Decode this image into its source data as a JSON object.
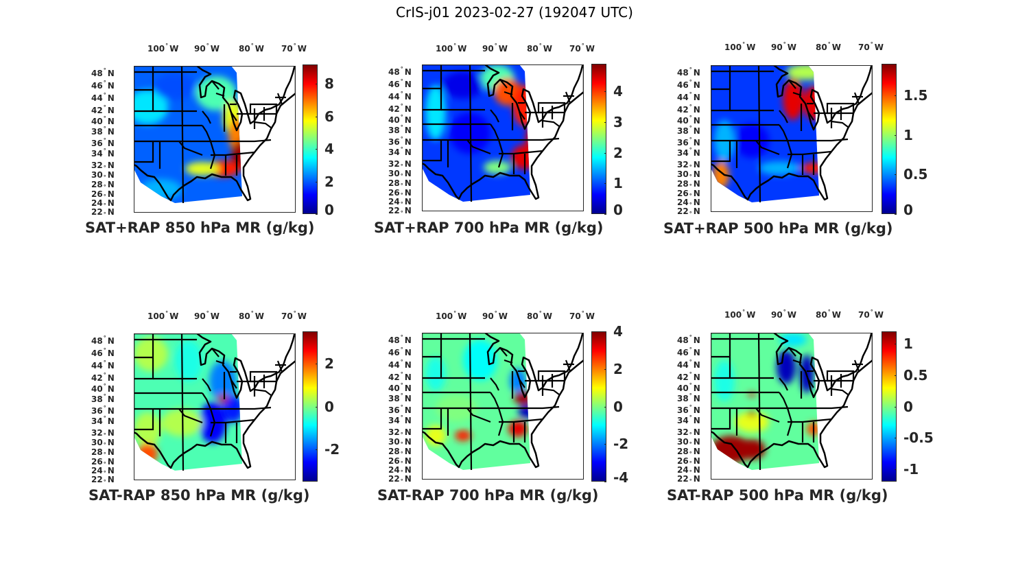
{
  "figure_title": "CrIS-j01 2023-02-27 (192047 UTC)",
  "colors": {
    "colormap": [
      "#00008f",
      "#0000ff",
      "#0080ff",
      "#00ffff",
      "#80ff80",
      "#ffff00",
      "#ff8000",
      "#ff0000",
      "#800000"
    ],
    "border": "#000000",
    "text": "#262626"
  },
  "chart_data": [
    {
      "type": "heatmap",
      "title": "SAT+RAP 850 hPa MR (g/kg)",
      "lon_ticks": [
        "100",
        "90",
        "80",
        "70"
      ],
      "lon_suffix": "W",
      "lat_ticks": [
        "48",
        "46",
        "44",
        "42",
        "40",
        "38",
        "36",
        "34",
        "32",
        "30",
        "28",
        "26",
        "24",
        "22"
      ],
      "lat_suffix": "N",
      "colorbar": {
        "range": [
          0,
          9.2
        ],
        "ticks": [
          "0",
          "2",
          "4",
          "6",
          "8"
        ],
        "tick_values": [
          0,
          2,
          4,
          6,
          8
        ]
      },
      "field_description_values": {
        "plains": 1.5,
        "great_lakes": 6,
        "southeast": 9
      }
    },
    {
      "type": "heatmap",
      "title": "SAT+RAP 700 hPa MR (g/kg)",
      "lon_ticks": [
        "100",
        "90",
        "80",
        "70"
      ],
      "lon_suffix": "W",
      "lat_ticks": [
        "48",
        "46",
        "44",
        "42",
        "40",
        "38",
        "36",
        "34",
        "32",
        "30",
        "28",
        "26",
        "24",
        "22"
      ],
      "lat_suffix": "N",
      "colorbar": {
        "range": [
          0,
          4.9
        ],
        "ticks": [
          "0",
          "1",
          "2",
          "3",
          "4"
        ],
        "tick_values": [
          0,
          1,
          2,
          3,
          4
        ]
      },
      "field_description_values": {
        "plains": 0.7,
        "great_lakes": 4.2,
        "southeast": 4.5
      }
    },
    {
      "type": "heatmap",
      "title": "SAT+RAP 500 hPa MR (g/kg)",
      "lon_ticks": [
        "100",
        "90",
        "80",
        "70"
      ],
      "lon_suffix": "W",
      "lat_ticks": [
        "48",
        "46",
        "44",
        "42",
        "40",
        "38",
        "36",
        "34",
        "32",
        "30",
        "28",
        "26",
        "24",
        "22"
      ],
      "lat_suffix": "N",
      "colorbar": {
        "range": [
          0,
          1.9
        ],
        "ticks": [
          "0",
          "0.5",
          "1",
          "1.5"
        ],
        "tick_values": [
          0,
          0.5,
          1,
          1.5
        ]
      },
      "field_description_values": {
        "plains": 0.3,
        "great_lakes": 1.8,
        "southeast": 0.3
      }
    },
    {
      "type": "heatmap",
      "title": "SAT-RAP 850 hPa MR (g/kg)",
      "lon_ticks": [
        "100",
        "90",
        "80",
        "70"
      ],
      "lon_suffix": "W",
      "lat_ticks": [
        "48",
        "46",
        "44",
        "42",
        "40",
        "38",
        "36",
        "34",
        "32",
        "30",
        "28",
        "26",
        "24",
        "22"
      ],
      "lat_suffix": "N",
      "colorbar": {
        "range": [
          -3.5,
          3.5
        ],
        "ticks": [
          "2",
          "0",
          "-2"
        ],
        "tick_values": [
          2,
          0,
          -2
        ]
      },
      "field_description_values": {
        "plains": 0,
        "mississippi_valley": -2.5,
        "south_texas": 2
      }
    },
    {
      "type": "heatmap",
      "title": "SAT-RAP 700 hPa MR (g/kg)",
      "lon_ticks": [
        "100",
        "90",
        "80",
        "70"
      ],
      "lon_suffix": "W",
      "lat_ticks": [
        "48",
        "46",
        "44",
        "42",
        "40",
        "38",
        "36",
        "34",
        "32",
        "30",
        "28",
        "26",
        "24",
        "22"
      ],
      "lat_suffix": "N",
      "colorbar": {
        "range": [
          -4,
          4
        ],
        "ticks": [
          "4",
          "2",
          "0",
          "-2",
          "-4"
        ],
        "tick_values": [
          4,
          2,
          0,
          -2,
          -4
        ]
      },
      "field_description_values": {
        "plains": 0,
        "ohio_valley": 4,
        "tennessee": -4
      }
    },
    {
      "type": "heatmap",
      "title": "SAT-RAP 500 hPa MR (g/kg)",
      "lon_ticks": [
        "100",
        "90",
        "80",
        "70"
      ],
      "lon_suffix": "W",
      "lat_ticks": [
        "48",
        "46",
        "44",
        "42",
        "40",
        "38",
        "36",
        "34",
        "32",
        "30",
        "28",
        "26",
        "24",
        "22"
      ],
      "lat_suffix": "N",
      "colorbar": {
        "range": [
          -1.2,
          1.2
        ],
        "ticks": [
          "1",
          "0.5",
          "0",
          "-0.5",
          "-1"
        ],
        "tick_values": [
          1,
          0.5,
          0,
          -0.5,
          -1
        ]
      },
      "field_description_values": {
        "plains": 0,
        "great_lakes": -1.1,
        "south_texas": 1.2
      }
    }
  ]
}
